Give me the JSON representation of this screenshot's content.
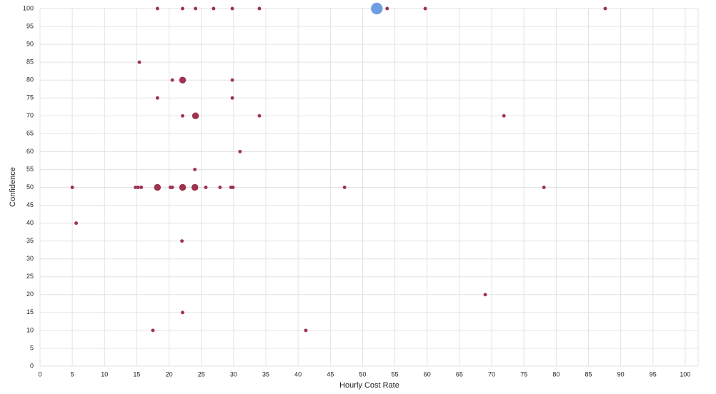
{
  "chart_data": {
    "type": "scatter",
    "x_label": "Hourly Cost Rate",
    "y_label": "Confidence",
    "xlim": [
      0,
      102
    ],
    "ylim": [
      0,
      100
    ],
    "xticks": [
      0,
      5,
      10,
      15,
      20,
      25,
      30,
      35,
      40,
      45,
      50,
      55,
      60,
      65,
      70,
      75,
      80,
      85,
      90,
      95,
      100
    ],
    "yticks": [
      0,
      5,
      10,
      15,
      20,
      25,
      30,
      35,
      40,
      45,
      50,
      55,
      60,
      65,
      70,
      75,
      80,
      85,
      90,
      95,
      100
    ],
    "grid": true,
    "series": [
      {
        "color": "#9e3350",
        "x": [
          18.2,
          22.1,
          24.1,
          26.9,
          29.8,
          34.0,
          53.8,
          59.7,
          87.6,
          15.4,
          20.5,
          22.1,
          29.8,
          18.2,
          29.8,
          22.1,
          24.1,
          34.0,
          71.9,
          31.0,
          24.0,
          5.0,
          14.8,
          15.2,
          15.7,
          18.2,
          20.2,
          20.5,
          22.1,
          24.0,
          25.7,
          27.9,
          29.6,
          29.9,
          47.2,
          78.1,
          5.6,
          22.0,
          69.0,
          22.1,
          17.5,
          41.2
        ],
        "values": [
          100,
          100,
          100,
          100,
          100,
          100,
          100,
          100,
          100,
          85,
          80,
          80,
          80,
          75,
          75,
          70,
          70,
          70,
          70,
          60,
          55,
          50,
          50,
          50,
          50,
          50,
          50,
          50,
          50,
          50,
          50,
          50,
          50,
          50,
          50,
          50,
          40,
          35,
          20,
          15,
          10,
          10
        ],
        "sizes": [
          1,
          1,
          1,
          1,
          1,
          1,
          1,
          1,
          1,
          1,
          1,
          3,
          1,
          1,
          1,
          1,
          3,
          1,
          1,
          1,
          1,
          1,
          1,
          1,
          1,
          3,
          1,
          1,
          3,
          3,
          1,
          1,
          1,
          1,
          1,
          1,
          1,
          1,
          1,
          1,
          1,
          1
        ]
      },
      {
        "color": "#6f9ee0",
        "x": [
          52.2
        ],
        "values": [
          100
        ],
        "sizes": [
          6
        ]
      }
    ]
  }
}
